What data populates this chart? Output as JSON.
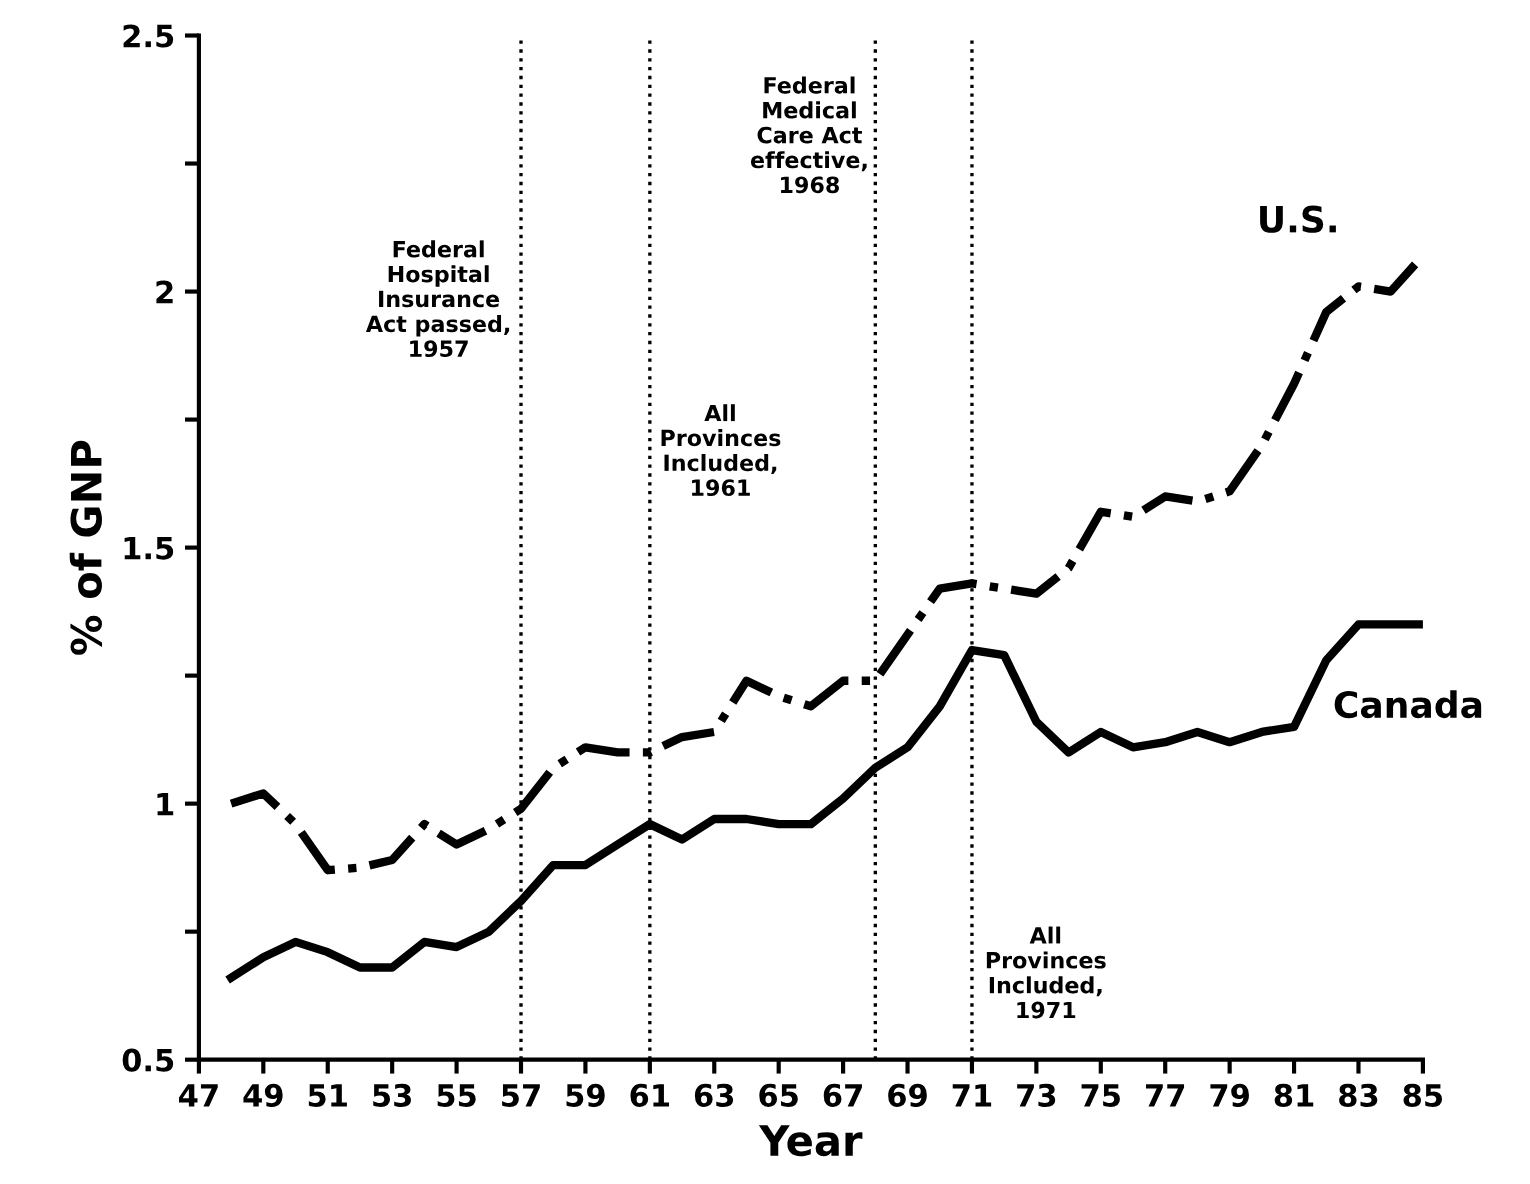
{
  "chart_data": {
    "type": "line",
    "xlabel": "Year",
    "ylabel": "% of GNP",
    "x": [
      48,
      49,
      50,
      51,
      52,
      53,
      54,
      55,
      56,
      57,
      58,
      59,
      60,
      61,
      62,
      63,
      64,
      65,
      66,
      67,
      68,
      69,
      70,
      71,
      72,
      73,
      74,
      75,
      76,
      77,
      78,
      79,
      80,
      81,
      82,
      83,
      84,
      85
    ],
    "series": [
      {
        "name": "U.S.",
        "color": "#000000",
        "line_style": "dashdot",
        "values": [
          1.0,
          1.02,
          0.96,
          0.87,
          0.875,
          0.89,
          0.96,
          0.92,
          0.95,
          0.99,
          1.07,
          1.11,
          1.1,
          1.1,
          1.13,
          1.14,
          1.24,
          1.21,
          1.19,
          1.24,
          1.24,
          1.33,
          1.42,
          1.43,
          1.42,
          1.41,
          1.46,
          1.57,
          1.56,
          1.6,
          1.59,
          1.61,
          1.7,
          1.82,
          1.96,
          2.01,
          2.0,
          2.07
        ]
      },
      {
        "name": "Canada",
        "color": "#000000",
        "line_style": "solid",
        "values": [
          0.66,
          0.7,
          0.73,
          0.71,
          0.68,
          0.68,
          0.73,
          0.72,
          0.75,
          0.81,
          0.88,
          0.88,
          0.92,
          0.96,
          0.93,
          0.97,
          0.97,
          0.96,
          0.96,
          1.01,
          1.07,
          1.11,
          1.19,
          1.3,
          1.29,
          1.16,
          1.1,
          1.14,
          1.11,
          1.12,
          1.14,
          1.12,
          1.14,
          1.15,
          1.28,
          1.35,
          1.35,
          1.35
        ]
      }
    ],
    "xlim": [
      47,
      85
    ],
    "xticks": [
      47,
      49,
      51,
      53,
      55,
      57,
      59,
      61,
      63,
      65,
      67,
      69,
      71,
      73,
      75,
      77,
      79,
      81,
      83,
      85
    ],
    "ylim": [
      0.5,
      2.5
    ],
    "yticks": [
      0.5,
      {
        "value": 0.75,
        "label": null
      },
      1,
      {
        "value": 1.25,
        "label": null
      },
      1.5,
      {
        "value": 1.75,
        "label": null
      },
      2,
      {
        "value": 2.25,
        "label": null
      },
      2.5
    ],
    "ref_lines": [
      {
        "axis": "x",
        "value": 57,
        "label": "Federal\nHospital\nInsurance\nAct passed,\n1957",
        "color": "#000000",
        "line_style": "dotted"
      },
      {
        "axis": "x",
        "value": 61,
        "label": "All\nProvinces\nIncluded,\n1961",
        "color": "#000000",
        "line_style": "dotted"
      },
      {
        "axis": "x",
        "value": 68,
        "label": "Federal\nMedical\nCare Act\neffective,\n1968",
        "color": "#000000",
        "line_style": "dotted"
      },
      {
        "axis": "x",
        "value": 71,
        "label": "All\nProvinces\nIncluded,\n1971",
        "color": "#000000",
        "line_style": "dotted"
      }
    ],
    "grid": false,
    "legend": false
  }
}
